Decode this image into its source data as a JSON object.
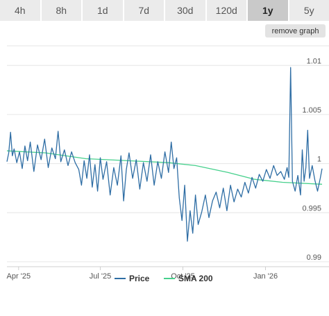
{
  "timeframe_tabs": [
    {
      "label": "4h",
      "active": false
    },
    {
      "label": "8h",
      "active": false
    },
    {
      "label": "1d",
      "active": false
    },
    {
      "label": "7d",
      "active": false
    },
    {
      "label": "30d",
      "active": false
    },
    {
      "label": "120d",
      "active": false
    },
    {
      "label": "1y",
      "active": true
    },
    {
      "label": "5y",
      "active": false
    }
  ],
  "remove_graph_label": "remove graph",
  "colors": {
    "price": "#2e6da4",
    "sma": "#46d08c",
    "tab_bg": "#ebebeb",
    "tab_active": "#c9c9c9"
  },
  "chart_data": {
    "type": "line",
    "title": "",
    "xlabel": "",
    "ylabel": "",
    "ylim": [
      0.9895,
      1.012
    ],
    "x_tick_labels": [
      "Apr '25",
      "Jul '25",
      "Oct '25",
      "Jan '26"
    ],
    "y_tick_labels": [
      "1.01",
      "1.005",
      "1",
      "0.995",
      "0.99"
    ],
    "y_ticks": [
      1.01,
      1.005,
      1.0,
      0.995,
      0.99
    ],
    "legend": {
      "placement": "bottom-center"
    },
    "series": [
      {
        "name": "Price",
        "color": "#2e6da4",
        "points": [
          [
            "2025-03-19",
            1.0002
          ],
          [
            "2025-03-21",
            1.0011
          ],
          [
            "2025-03-23",
            1.0032
          ],
          [
            "2025-03-25",
            1.0008
          ],
          [
            "2025-03-27",
            1.0015
          ],
          [
            "2025-03-30",
            1.0001
          ],
          [
            "2025-04-02",
            1.0012
          ],
          [
            "2025-04-05",
            0.9995
          ],
          [
            "2025-04-08",
            1.0018
          ],
          [
            "2025-04-11",
            1.0003
          ],
          [
            "2025-04-14",
            1.0022
          ],
          [
            "2025-04-18",
            0.9992
          ],
          [
            "2025-04-22",
            1.0019
          ],
          [
            "2025-04-26",
            1.0004
          ],
          [
            "2025-04-30",
            1.0025
          ],
          [
            "2025-05-04",
            0.9996
          ],
          [
            "2025-05-08",
            1.0016
          ],
          [
            "2025-05-12",
            1.0005
          ],
          [
            "2025-05-15",
            1.0033
          ],
          [
            "2025-05-18",
            1.0002
          ],
          [
            "2025-05-22",
            1.0014
          ],
          [
            "2025-05-26",
            0.9998
          ],
          [
            "2025-05-30",
            1.0012
          ],
          [
            "2025-06-03",
            1.0001
          ],
          [
            "2025-06-07",
            0.9994
          ],
          [
            "2025-06-10",
            0.9978
          ],
          [
            "2025-06-13",
            1.0003
          ],
          [
            "2025-06-16",
            0.9985
          ],
          [
            "2025-06-19",
            1.0009
          ],
          [
            "2025-06-22",
            0.9976
          ],
          [
            "2025-06-25",
            0.9999
          ],
          [
            "2025-06-28",
            0.9972
          ],
          [
            "2025-07-01",
            1.0006
          ],
          [
            "2025-07-04",
            0.9984
          ],
          [
            "2025-07-08",
            1.0002
          ],
          [
            "2025-07-12",
            0.9968
          ],
          [
            "2025-07-16",
            0.9996
          ],
          [
            "2025-07-20",
            0.9978
          ],
          [
            "2025-07-24",
            1.0008
          ],
          [
            "2025-07-27",
            0.9962
          ],
          [
            "2025-07-30",
            0.9994
          ],
          [
            "2025-08-02",
            1.0011
          ],
          [
            "2025-08-06",
            0.9985
          ],
          [
            "2025-08-10",
            1.0004
          ],
          [
            "2025-08-14",
            0.9974
          ],
          [
            "2025-08-18",
            1.0001
          ],
          [
            "2025-08-22",
            0.9982
          ],
          [
            "2025-08-26",
            1.0009
          ],
          [
            "2025-08-30",
            0.9978
          ],
          [
            "2025-09-03",
            1.0002
          ],
          [
            "2025-09-07",
            0.9985
          ],
          [
            "2025-09-11",
            1.0012
          ],
          [
            "2025-09-15",
            0.9991
          ],
          [
            "2025-09-18",
            1.0022
          ],
          [
            "2025-09-21",
            0.9995
          ],
          [
            "2025-09-24",
            1.0006
          ],
          [
            "2025-09-27",
            0.9965
          ],
          [
            "2025-09-30",
            0.9942
          ],
          [
            "2025-10-03",
            0.9978
          ],
          [
            "2025-10-06",
            0.9921
          ],
          [
            "2025-10-09",
            0.9952
          ],
          [
            "2025-10-12",
            0.9929
          ],
          [
            "2025-10-15",
            0.9968
          ],
          [
            "2025-10-18",
            0.9938
          ],
          [
            "2025-10-22",
            0.9951
          ],
          [
            "2025-10-26",
            0.9968
          ],
          [
            "2025-10-30",
            0.9945
          ],
          [
            "2025-11-03",
            0.9962
          ],
          [
            "2025-11-07",
            0.9971
          ],
          [
            "2025-11-11",
            0.9955
          ],
          [
            "2025-11-15",
            0.9975
          ],
          [
            "2025-11-19",
            0.9952
          ],
          [
            "2025-11-23",
            0.9978
          ],
          [
            "2025-11-27",
            0.9961
          ],
          [
            "2025-12-01",
            0.9974
          ],
          [
            "2025-12-05",
            0.9966
          ],
          [
            "2025-12-09",
            0.9981
          ],
          [
            "2025-12-13",
            0.997
          ],
          [
            "2025-12-17",
            0.9986
          ],
          [
            "2025-12-21",
            0.9975
          ],
          [
            "2025-12-25",
            0.9989
          ],
          [
            "2025-12-29",
            0.9982
          ],
          [
            "2026-01-02",
            0.9994
          ],
          [
            "2026-01-06",
            0.9985
          ],
          [
            "2026-01-10",
            0.9998
          ],
          [
            "2026-01-14",
            0.9988
          ],
          [
            "2026-01-18",
            0.9992
          ],
          [
            "2026-01-22",
            0.9984
          ],
          [
            "2026-01-25",
            0.9996
          ],
          [
            "2026-01-27",
            0.9986
          ],
          [
            "2026-01-29",
            1.0098
          ],
          [
            "2026-01-31",
            0.9982
          ],
          [
            "2026-02-03",
            0.9972
          ],
          [
            "2026-02-06",
            0.9988
          ],
          [
            "2026-02-09",
            0.9968
          ],
          [
            "2026-02-11",
            1.0014
          ],
          [
            "2026-02-13",
            0.9982
          ],
          [
            "2026-02-15",
            0.9996
          ],
          [
            "2026-02-17",
            1.0034
          ],
          [
            "2026-02-19",
            0.9985
          ],
          [
            "2026-02-22",
            0.9998
          ],
          [
            "2026-02-25",
            0.9983
          ],
          [
            "2026-02-28",
            0.9972
          ],
          [
            "2026-03-03",
            0.9985
          ],
          [
            "2026-03-05",
            0.9995
          ]
        ]
      },
      {
        "name": "SMA 200",
        "color": "#46d08c",
        "points": [
          [
            "2025-03-19",
            1.0013
          ],
          [
            "2025-05-01",
            1.0011
          ],
          [
            "2025-06-15",
            1.0005
          ],
          [
            "2025-08-01",
            1.0003
          ],
          [
            "2025-09-15",
            1.0001
          ],
          [
            "2025-10-15",
            0.9998
          ],
          [
            "2025-11-20",
            0.9991
          ],
          [
            "2025-12-20",
            0.9984
          ],
          [
            "2026-01-20",
            0.9981
          ],
          [
            "2026-03-05",
            0.9979
          ]
        ]
      }
    ]
  }
}
